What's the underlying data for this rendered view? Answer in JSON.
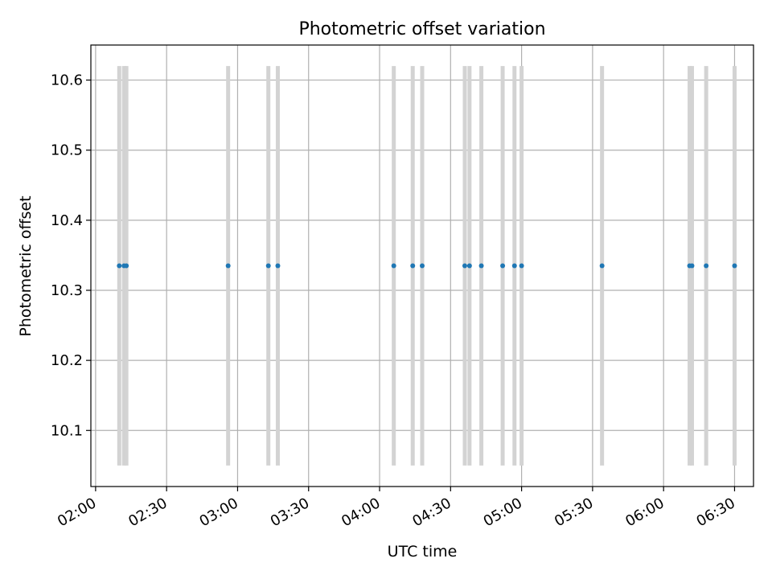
{
  "chart_data": {
    "type": "scatter",
    "title": "Photometric offset variation",
    "xlabel": "UTC time",
    "ylabel": "Photometric offset",
    "xlim": [
      "01:58",
      "06:38"
    ],
    "ylim": [
      10.02,
      10.65
    ],
    "x_ticks": [
      "02:00",
      "02:30",
      "03:00",
      "03:30",
      "04:00",
      "04:30",
      "05:00",
      "05:30",
      "06:00",
      "06:30"
    ],
    "y_ticks": [
      10.1,
      10.2,
      10.3,
      10.4,
      10.5,
      10.6
    ],
    "grid": true,
    "error_bar_range": [
      10.05,
      10.62
    ],
    "points": [
      {
        "x": "02:10",
        "y": 10.335
      },
      {
        "x": "02:12",
        "y": 10.335
      },
      {
        "x": "02:13",
        "y": 10.335
      },
      {
        "x": "02:56",
        "y": 10.335
      },
      {
        "x": "03:13",
        "y": 10.335
      },
      {
        "x": "03:17",
        "y": 10.335
      },
      {
        "x": "04:06",
        "y": 10.335
      },
      {
        "x": "04:14",
        "y": 10.335
      },
      {
        "x": "04:18",
        "y": 10.335
      },
      {
        "x": "04:36",
        "y": 10.335
      },
      {
        "x": "04:38",
        "y": 10.335
      },
      {
        "x": "04:43",
        "y": 10.335
      },
      {
        "x": "04:52",
        "y": 10.335
      },
      {
        "x": "04:57",
        "y": 10.335
      },
      {
        "x": "05:00",
        "y": 10.335
      },
      {
        "x": "05:34",
        "y": 10.335
      },
      {
        "x": "06:11",
        "y": 10.335
      },
      {
        "x": "06:12",
        "y": 10.335
      },
      {
        "x": "06:18",
        "y": 10.335
      },
      {
        "x": "06:30",
        "y": 10.335
      }
    ],
    "colors": {
      "points": "#1f77b4",
      "error_bars": "#d3d3d3",
      "grid": "#b0b0b0",
      "axes": "#000000"
    }
  }
}
